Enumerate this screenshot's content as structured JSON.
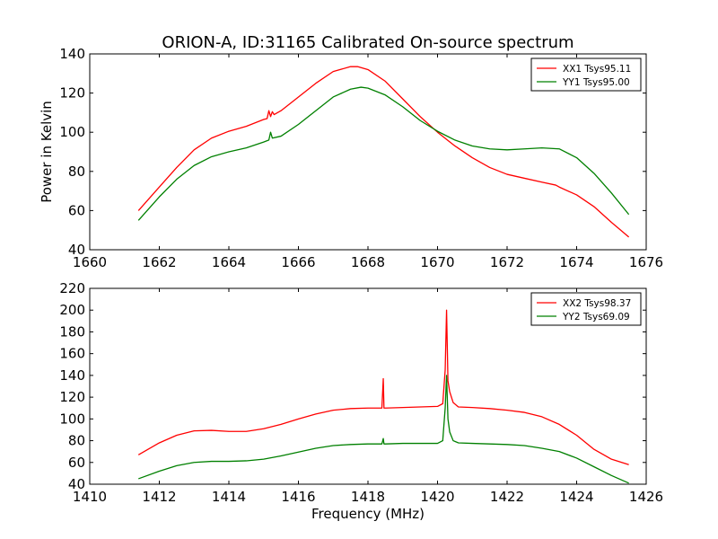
{
  "title": "ORION-A, ID:31165 Calibrated On-source spectrum",
  "chart_data": [
    {
      "type": "line",
      "xlabel": "",
      "ylabel": "Power in Kelvin",
      "xlim": [
        1660,
        1676
      ],
      "ylim": [
        40,
        140
      ],
      "xticks": [
        1660,
        1662,
        1664,
        1666,
        1668,
        1670,
        1672,
        1674,
        1676
      ],
      "yticks": [
        40,
        60,
        80,
        100,
        120,
        140
      ],
      "legend": "top-right",
      "grid": false,
      "series": [
        {
          "name": "XX1 Tsys95.11",
          "color": "#ff0000",
          "x": [
            1661.4,
            1662.0,
            1662.5,
            1663.0,
            1663.5,
            1664.0,
            1664.5,
            1665.0,
            1665.1,
            1665.15,
            1665.2,
            1665.25,
            1665.3,
            1665.5,
            1666.0,
            1666.5,
            1667.0,
            1667.5,
            1667.7,
            1668.0,
            1668.5,
            1669.0,
            1669.5,
            1670.0,
            1670.5,
            1671.0,
            1671.5,
            1672.0,
            1672.5,
            1673.0,
            1673.4,
            1673.5,
            1674.0,
            1674.5,
            1675.0,
            1675.5
          ],
          "y": [
            60,
            72,
            82,
            91,
            97,
            100.5,
            103,
            106.5,
            107,
            111,
            108,
            110.5,
            109,
            111,
            118,
            125,
            131,
            133.5,
            133.5,
            132,
            126,
            117,
            108,
            100,
            93,
            87,
            82,
            78.5,
            76.5,
            74.5,
            73,
            72,
            68,
            62,
            54,
            46.5
          ]
        },
        {
          "name": "YY1 Tsys95.00",
          "color": "#008000",
          "x": [
            1661.4,
            1662.0,
            1662.5,
            1663.0,
            1663.5,
            1664.0,
            1664.5,
            1665.0,
            1665.15,
            1665.2,
            1665.25,
            1665.5,
            1666.0,
            1666.5,
            1667.0,
            1667.5,
            1667.8,
            1668.0,
            1668.5,
            1669.0,
            1669.5,
            1670.0,
            1670.5,
            1671.0,
            1671.5,
            1672.0,
            1672.5,
            1673.0,
            1673.5,
            1674.0,
            1674.5,
            1675.0,
            1675.5
          ],
          "y": [
            55,
            67,
            76,
            83,
            87.5,
            90,
            92,
            95,
            96,
            100,
            97,
            98,
            104,
            111,
            118,
            122,
            123,
            122.5,
            119,
            113,
            106,
            100.5,
            96,
            93,
            91.5,
            91,
            91.5,
            92,
            91.5,
            87,
            79,
            69,
            58
          ]
        }
      ]
    },
    {
      "type": "line",
      "xlabel": "Frequency (MHz)",
      "ylabel": "",
      "xlim": [
        1410,
        1426
      ],
      "ylim": [
        40,
        220
      ],
      "xticks": [
        1410,
        1412,
        1414,
        1416,
        1418,
        1420,
        1422,
        1424,
        1426
      ],
      "yticks": [
        40,
        60,
        80,
        100,
        120,
        140,
        160,
        180,
        200,
        220
      ],
      "legend": "top-right",
      "grid": false,
      "series": [
        {
          "name": "XX2 Tsys98.37",
          "color": "#ff0000",
          "x": [
            1411.4,
            1412.0,
            1412.5,
            1413.0,
            1413.5,
            1414.0,
            1414.5,
            1415.0,
            1415.5,
            1416.0,
            1416.5,
            1417.0,
            1417.5,
            1418.0,
            1418.4,
            1418.44,
            1418.46,
            1418.5,
            1419.0,
            1419.5,
            1420.0,
            1420.15,
            1420.22,
            1420.26,
            1420.3,
            1420.35,
            1420.45,
            1420.6,
            1421.0,
            1421.5,
            1422.0,
            1422.5,
            1423.0,
            1423.5,
            1424.0,
            1424.5,
            1425.0,
            1425.5
          ],
          "y": [
            67,
            78,
            85,
            89,
            89.5,
            88.5,
            88.5,
            91,
            95,
            100,
            104.5,
            108,
            109.5,
            110,
            110,
            137,
            110,
            110,
            110.5,
            111,
            111.5,
            114,
            145,
            200,
            135,
            125,
            115,
            111,
            110.5,
            109.5,
            108,
            106,
            102,
            95,
            85,
            72,
            63,
            58
          ]
        },
        {
          "name": "YY2 Tsys69.09",
          "color": "#008000",
          "x": [
            1411.4,
            1412.0,
            1412.5,
            1413.0,
            1413.5,
            1414.0,
            1414.5,
            1415.0,
            1415.5,
            1416.0,
            1416.5,
            1417.0,
            1417.5,
            1418.0,
            1418.4,
            1418.44,
            1418.46,
            1418.5,
            1419.0,
            1419.5,
            1420.0,
            1420.15,
            1420.22,
            1420.26,
            1420.3,
            1420.35,
            1420.45,
            1420.6,
            1421.0,
            1421.5,
            1422.0,
            1422.5,
            1423.0,
            1423.5,
            1424.0,
            1424.5,
            1425.0,
            1425.5
          ],
          "y": [
            45,
            52,
            57,
            60,
            61,
            61,
            61.5,
            63,
            66,
            69.5,
            73,
            75.5,
            76.5,
            77,
            77,
            82,
            77,
            77,
            77.5,
            77.5,
            77.5,
            80,
            110,
            140,
            100,
            88,
            80,
            78,
            77.5,
            77,
            76.5,
            75.5,
            73,
            70,
            64,
            56,
            48,
            41
          ]
        }
      ]
    }
  ]
}
